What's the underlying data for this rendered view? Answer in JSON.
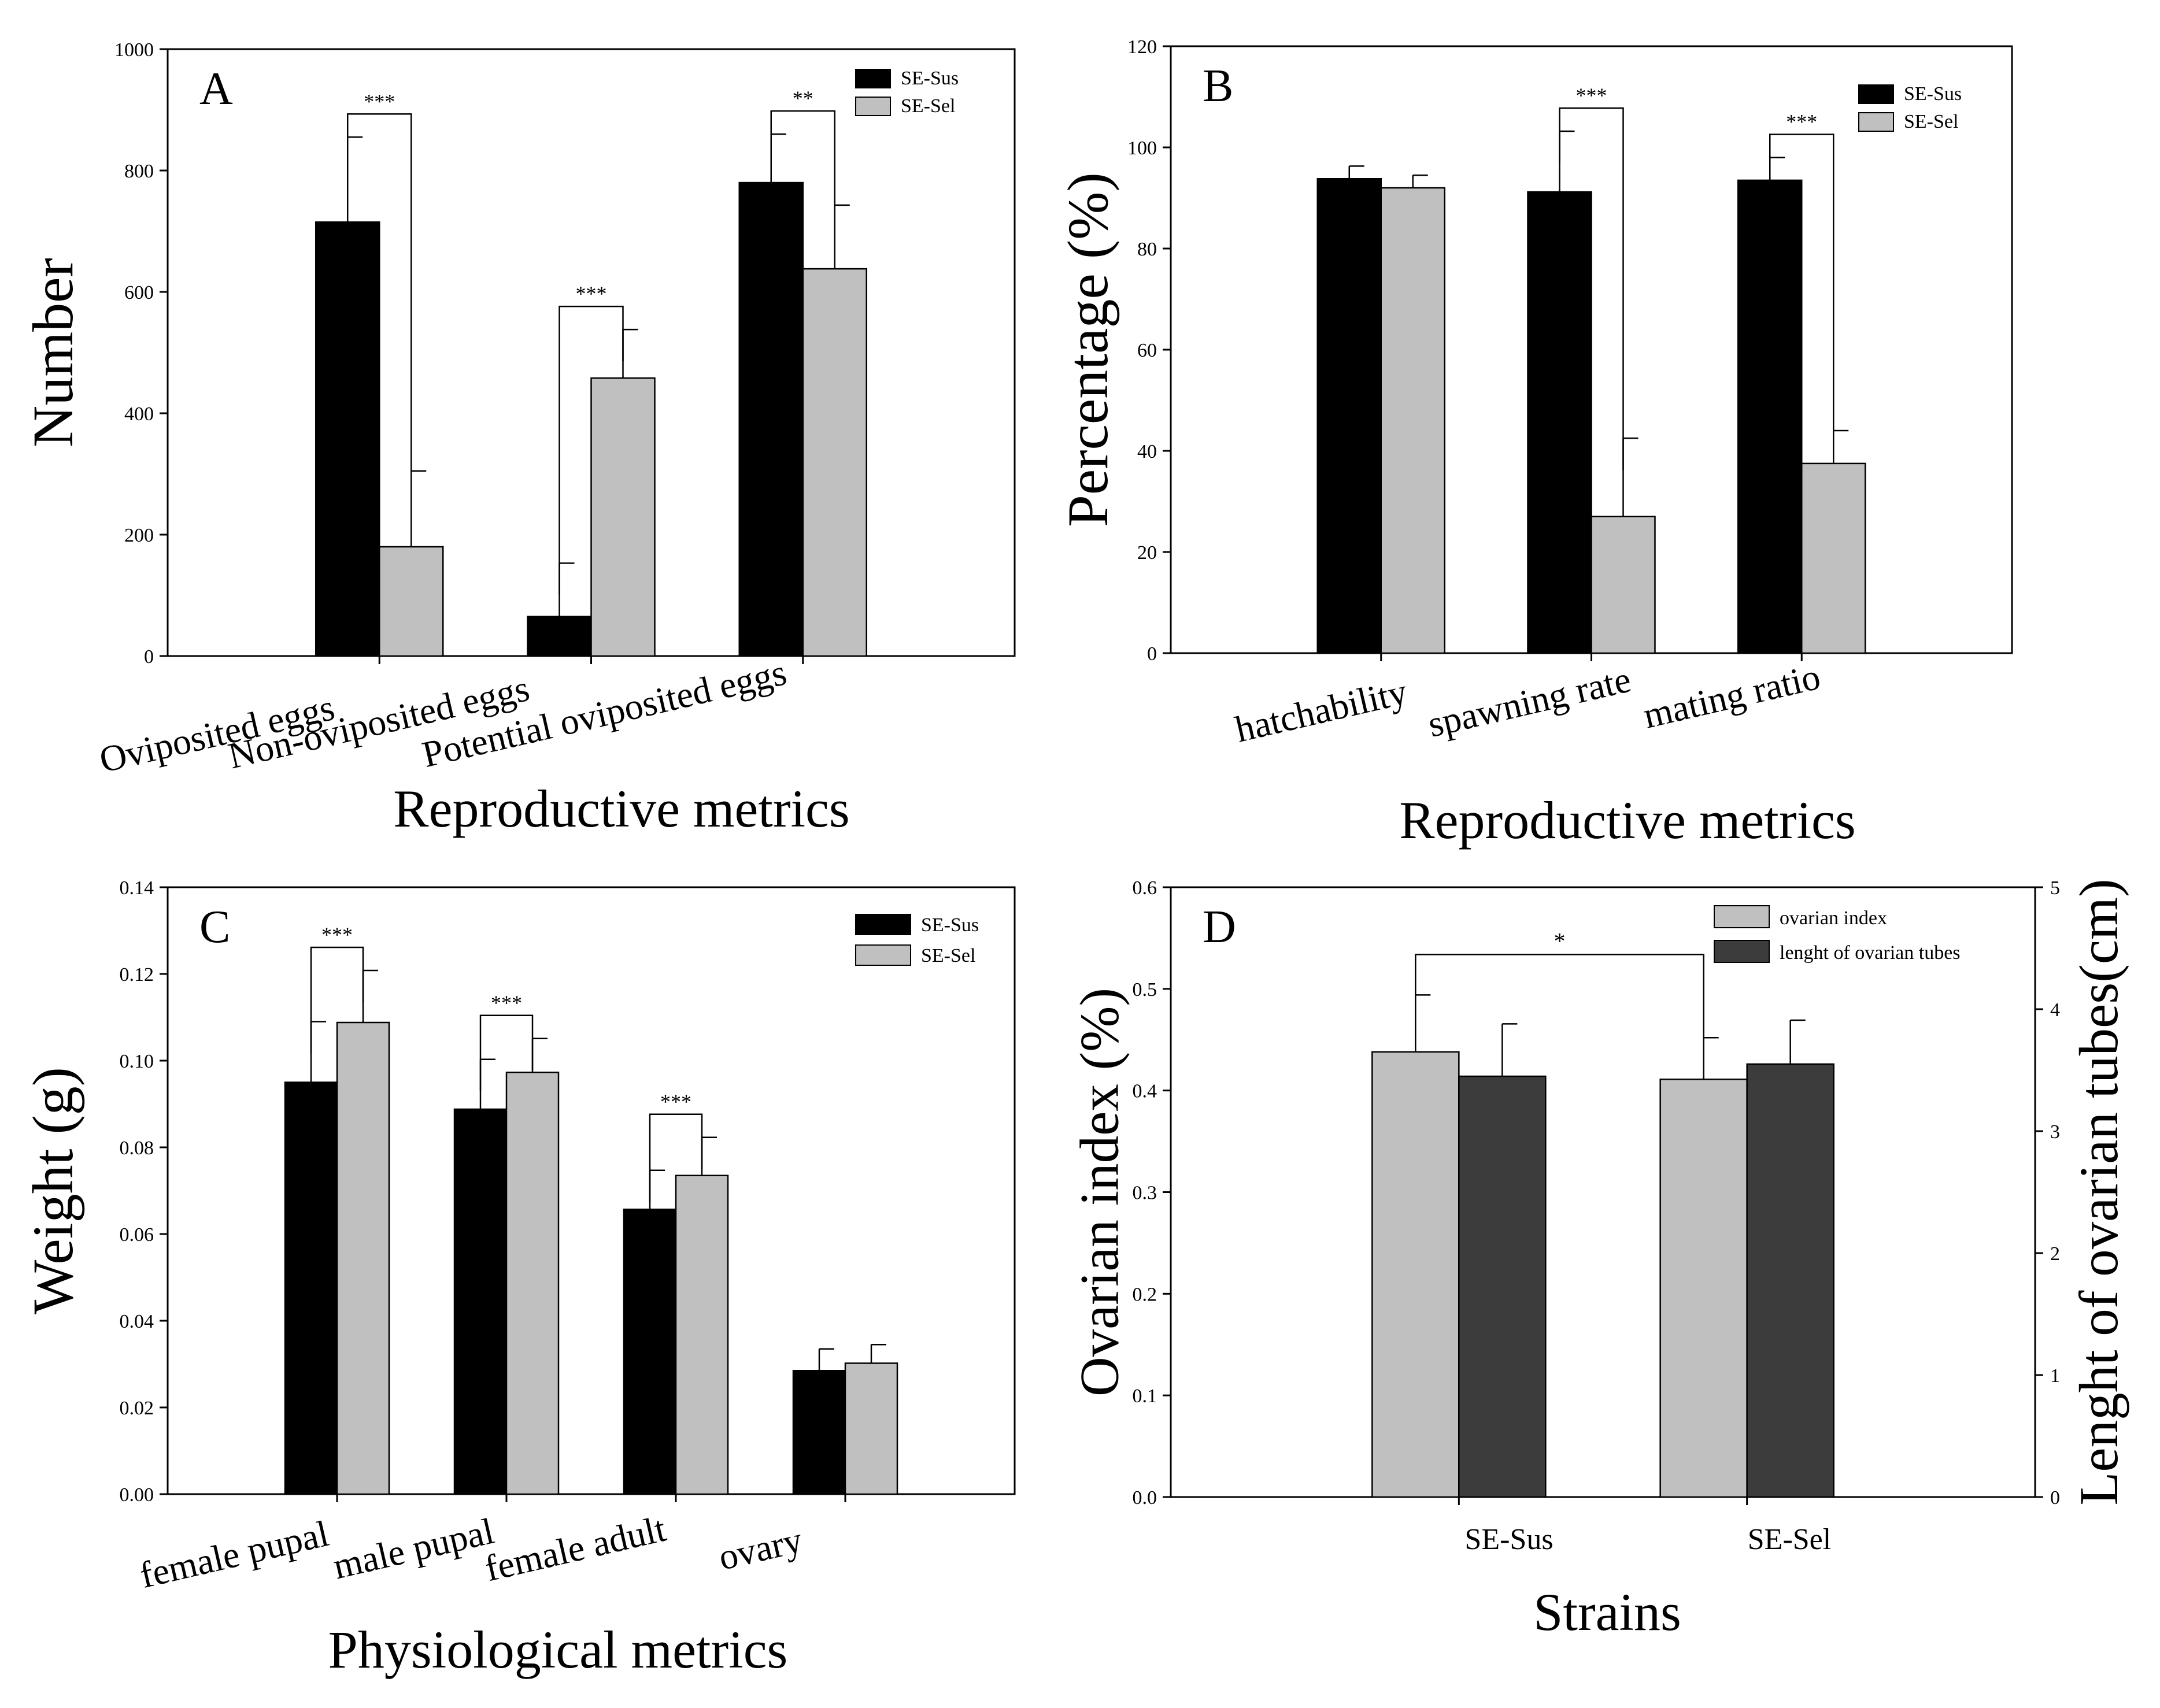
{
  "chart_data": [
    {
      "panel": "A",
      "type": "bar",
      "xlabel": "Reproductive metrics",
      "ylabel": "Number",
      "ylim": [
        0,
        1000
      ],
      "yticks": [
        "0",
        "200",
        "400",
        "600",
        "800",
        "1000"
      ],
      "categories": [
        "Oviposited eggs",
        "Non-oviposited eggs",
        "Potential oviposited eggs"
      ],
      "series": [
        {
          "name": "SE-Sus",
          "color": "#000000",
          "values": [
            715,
            65,
            780
          ],
          "errors": [
            140,
            88,
            80
          ]
        },
        {
          "name": "SE-Sel",
          "color": "#c0c0c0",
          "values": [
            180,
            458,
            638
          ],
          "errors": [
            125,
            80,
            105
          ]
        }
      ],
      "significance": [
        "***",
        "***",
        "**"
      ],
      "legend_position": "top-right",
      "grid": false
    },
    {
      "panel": "B",
      "type": "bar",
      "xlabel": "Reproductive metrics",
      "ylabel": "Percentage (%)",
      "ylim": [
        0,
        120
      ],
      "yticks": [
        "0",
        "20",
        "40",
        "60",
        "80",
        "100",
        "120"
      ],
      "categories": [
        "hatchability",
        "spawning rate",
        "mating ratio"
      ],
      "series": [
        {
          "name": "SE-Sus",
          "color": "#000000",
          "values": [
            93.8,
            91.2,
            93.5
          ],
          "errors": [
            2.5,
            12,
            4.5
          ]
        },
        {
          "name": "SE-Sel",
          "color": "#c0c0c0",
          "values": [
            92,
            27,
            37.5
          ],
          "errors": [
            2.5,
            15.5,
            6.5
          ]
        }
      ],
      "significance": [
        "",
        "***",
        "***"
      ],
      "legend_position": "top-right",
      "grid": false
    },
    {
      "panel": "C",
      "type": "bar",
      "xlabel": "Physiological metrics",
      "ylabel": "Weight (g)",
      "ylim": [
        0,
        0.14
      ],
      "yticks": [
        "0.00",
        "0.02",
        "0.04",
        "0.06",
        "0.08",
        "0.10",
        "0.12",
        "0.14"
      ],
      "categories": [
        "female pupal",
        "male pupal",
        "female adult",
        "ovary"
      ],
      "series": [
        {
          "name": "SE-Sus",
          "color": "#000000",
          "values": [
            0.095,
            0.0888,
            0.0657,
            0.0285
          ],
          "errors": [
            0.014,
            0.0115,
            0.009,
            0.005
          ]
        },
        {
          "name": "SE-Sel",
          "color": "#c0c0c0",
          "values": [
            0.1088,
            0.0973,
            0.0735,
            0.0302
          ],
          "errors": [
            0.012,
            0.0078,
            0.0088,
            0.0043
          ]
        }
      ],
      "significance": [
        "***",
        "***",
        "***",
        ""
      ],
      "legend_position": "top-right",
      "grid": false
    },
    {
      "panel": "D",
      "type": "bar",
      "xlabel": "Strains",
      "ylabel": "Ovarian index (%)",
      "y2label": "Lenght of ovarian tubes(cm)",
      "ylim": [
        0,
        0.6
      ],
      "y2lim": [
        0,
        5
      ],
      "yticks": [
        "0.0",
        "0.1",
        "0.2",
        "0.3",
        "0.4",
        "0.5",
        "0.6"
      ],
      "y2ticks": [
        "0",
        "1",
        "2",
        "3",
        "4",
        "5"
      ],
      "categories": [
        "SE-Sus",
        "SE-Sel"
      ],
      "series": [
        {
          "name": "ovarian index",
          "axis": "left",
          "color": "#c0c0c0",
          "values": [
            0.438,
            0.411
          ],
          "errors": [
            0.056,
            0.041
          ]
        },
        {
          "name": "lenght of ovarian tubes",
          "axis": "right",
          "color": "#3c3c3c",
          "values": [
            3.45,
            3.55
          ],
          "errors": [
            0.43,
            0.36
          ]
        }
      ],
      "significance_label": "*",
      "legend_position": "top-right",
      "grid": false
    }
  ]
}
